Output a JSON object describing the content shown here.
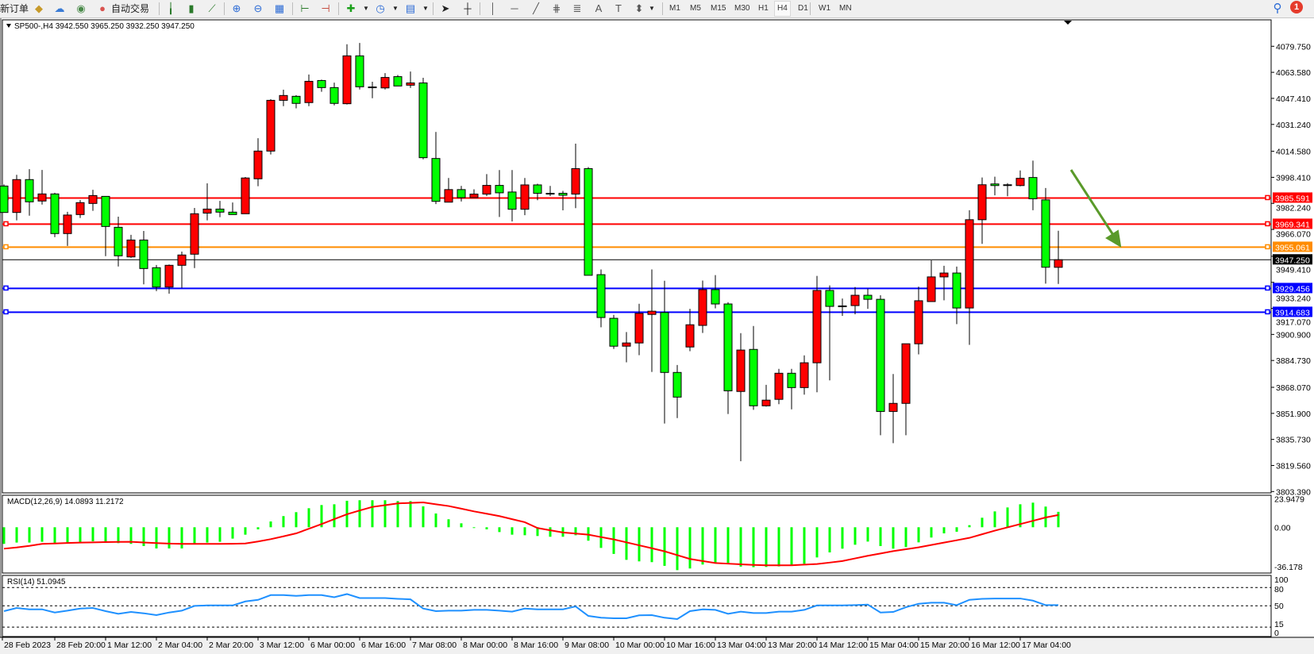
{
  "toolbar": {
    "new_order_label": "新订单",
    "auto_trading_label": "自动交易",
    "icons": [
      "open-folder-icon",
      "cloud-profile-icon",
      "signal-icon",
      "auto-trading-icon",
      "bar-chart-icon",
      "candlestick-icon",
      "line-chart-icon",
      "zoom-in-icon",
      "zoom-out-icon",
      "tile-windows-icon",
      "chart-shift-icon",
      "autoscroll-icon",
      "new-indicator-icon",
      "periods-clock-icon",
      "templates-icon",
      "cursor-icon",
      "crosshair-icon",
      "vertical-line-icon",
      "horizontal-line-icon",
      "trend-line-icon",
      "fibonacci-icon",
      "fibonacci-fan-icon",
      "text-icon",
      "text-label-icon",
      "arrows-icon"
    ],
    "timeframes": [
      "M1",
      "M5",
      "M15",
      "M30",
      "H1",
      "H4",
      "D1",
      "W1",
      "MN"
    ],
    "active_timeframe": "H4",
    "notification_count": "1"
  },
  "chart": {
    "title": "SP500-,H4  3942.550 3965.250 3932.250 3947.250",
    "symbol": "SP500-",
    "timeframe": "H4",
    "ohlc_current": {
      "open": 3942.55,
      "high": 3965.25,
      "low": 3932.25,
      "close": 3947.25
    },
    "colors": {
      "bull": "#ff0000",
      "bear": "#00ff00",
      "outline": "#000000",
      "arrow": "#5a9a2a"
    },
    "price_ticks": [
      "4079.750",
      "4063.580",
      "4047.410",
      "4031.240",
      "4014.580",
      "3998.410",
      "3982.240",
      "3966.070",
      "3949.410",
      "3933.240",
      "3917.070",
      "3900.900",
      "3884.730",
      "3868.070",
      "3851.900",
      "3835.730",
      "3819.560",
      "3803.390"
    ],
    "ylim": [
      3803.39,
      4079.75
    ],
    "time_labels": [
      "28 Feb 2023",
      "28 Feb 20:00",
      "1 Mar 12:00",
      "2 Mar 04:00",
      "2 Mar 20:00",
      "3 Mar 12:00",
      "6 Mar 00:00",
      "6 Mar 16:00",
      "7 Mar 08:00",
      "8 Mar 00:00",
      "8 Mar 16:00",
      "9 Mar 08:00",
      "10 Mar 00:00",
      "10 Mar 16:00",
      "13 Mar 04:00",
      "13 Mar 20:00",
      "14 Mar 12:00",
      "15 Mar 04:00",
      "15 Mar 20:00",
      "16 Mar 12:00",
      "17 Mar 04:00"
    ],
    "horizontal_lines": [
      {
        "price": 3985.591,
        "label": "3985.591",
        "color": "#ff0000"
      },
      {
        "price": 3969.341,
        "label": "3969.341",
        "color": "#ff0000"
      },
      {
        "price": 3955.061,
        "label": "3955.061",
        "color": "#ff8c00"
      },
      {
        "price": 3929.456,
        "label": "3929.456",
        "color": "#0000ff"
      },
      {
        "price": 3914.683,
        "label": "3914.683",
        "color": "#0000ff"
      }
    ],
    "bid_line": {
      "price": 3947.25,
      "label": "3947.250",
      "color": "#000000"
    },
    "annotation": "down-arrow"
  },
  "macd": {
    "label": "MACD(12,26,9) 14.0893 11.2172",
    "ticks": [
      "23.9479",
      "0.00",
      "-36.178"
    ],
    "histogram_color": "#00ff00",
    "signal_color": "#ff0000"
  },
  "rsi": {
    "label": "RSI(14) 51.0945",
    "ticks": [
      "100",
      "80",
      "50",
      "15",
      "0"
    ],
    "line_color": "#1e90ff"
  },
  "chart_data": {
    "type": "candlestick",
    "ohlc": [
      [
        3993.0,
        3994.0,
        3976.6,
        3976.6
      ],
      [
        3976.6,
        4000.0,
        3971.7,
        3997.0
      ],
      [
        3997.0,
        4003.5,
        3974.6,
        3983.2
      ],
      [
        3983.7,
        4003.0,
        3981.5,
        3988.1
      ],
      [
        3988.1,
        3988.8,
        3961.3,
        3963.5
      ],
      [
        3963.5,
        3977.0,
        3955.8,
        3975.0
      ],
      [
        3975.3,
        3984.3,
        3973.2,
        3982.7
      ],
      [
        3982.2,
        3990.7,
        3977.6,
        3987.1
      ],
      [
        3986.6,
        3986.6,
        3949.5,
        3967.9
      ],
      [
        3967.4,
        3974.0,
        3943.1,
        3949.7
      ],
      [
        3949.0,
        3962.7,
        3948.4,
        3959.5
      ],
      [
        3959.5,
        3965.1,
        3932.0,
        3941.8
      ],
      [
        3942.3,
        3944.0,
        3927.8,
        3930.3
      ],
      [
        3930.3,
        3944.3,
        3926.2,
        3943.8
      ],
      [
        3943.8,
        3952.3,
        3929.8,
        3950.2
      ],
      [
        3950.7,
        3979.4,
        3942.1,
        3975.8
      ],
      [
        3976.2,
        3994.7,
        3971.7,
        3978.7
      ],
      [
        3978.7,
        3983.8,
        3973.7,
        3976.8
      ],
      [
        3976.8,
        3982.8,
        3975.3,
        3975.3
      ],
      [
        3975.8,
        3998.6,
        3975.8,
        3998.0
      ],
      [
        3997.5,
        4022.7,
        3992.9,
        4014.7
      ],
      [
        4014.7,
        4046.9,
        4012.6,
        4046.2
      ],
      [
        4046.2,
        4052.8,
        4042.6,
        4049.2
      ],
      [
        4048.7,
        4049.4,
        4041.2,
        4044.3
      ],
      [
        4044.8,
        4062.2,
        4042.6,
        4058.0
      ],
      [
        4058.5,
        4059.0,
        4051.5,
        4054.1
      ],
      [
        4054.1,
        4057.2,
        4043.1,
        4044.3
      ],
      [
        4044.1,
        4081.0,
        4043.6,
        4073.8
      ],
      [
        4073.8,
        4081.8,
        4052.9,
        4054.6
      ],
      [
        4054.3,
        4057.7,
        4047.5,
        4054.5
      ],
      [
        4053.9,
        4063.1,
        4052.9,
        4060.4
      ],
      [
        4060.9,
        4061.9,
        4055.1,
        4055.1
      ],
      [
        4055.6,
        4064.1,
        4053.9,
        4057.0
      ],
      [
        4057.0,
        4060.2,
        4009.6,
        4010.6
      ],
      [
        4010.1,
        4026.6,
        3981.8,
        3983.5
      ],
      [
        3983.0,
        3998.0,
        3983.0,
        3990.8
      ],
      [
        3990.8,
        3993.1,
        3983.4,
        3985.8
      ],
      [
        3985.8,
        3991.0,
        3985.8,
        3988.0
      ],
      [
        3988.0,
        4000.4,
        3986.8,
        3993.4
      ],
      [
        3993.4,
        4002.9,
        3973.8,
        3988.8
      ],
      [
        3989.3,
        4002.9,
        3971.0,
        3978.6
      ],
      [
        3978.6,
        3998.0,
        3974.9,
        3993.7
      ],
      [
        3993.7,
        3994.4,
        3984.2,
        3988.5
      ],
      [
        3988.5,
        3993.1,
        3986.8,
        3988.5
      ],
      [
        3988.5,
        3990.0,
        3977.9,
        3987.3
      ],
      [
        3988.0,
        4019.3,
        3979.3,
        4003.8
      ],
      [
        4003.8,
        4004.8,
        3937.6,
        3937.6
      ],
      [
        3938.0,
        3941.2,
        3905.3,
        3911.4
      ],
      [
        3910.9,
        3913.0,
        3891.9,
        3893.6
      ],
      [
        3893.6,
        3902.4,
        3883.6,
        3895.6
      ],
      [
        3895.6,
        3919.9,
        3888.0,
        3914.0
      ],
      [
        3913.3,
        3941.2,
        3877.6,
        3915.3
      ],
      [
        3914.5,
        3934.2,
        3845.6,
        3877.3
      ],
      [
        3877.3,
        3881.9,
        3849.0,
        3862.0
      ],
      [
        3893.1,
        3916.8,
        3890.5,
        3906.9
      ],
      [
        3906.5,
        3934.3,
        3901.8,
        3928.7
      ],
      [
        3928.7,
        3937.7,
        3917.1,
        3919.8
      ],
      [
        3919.8,
        3920.9,
        3851.5,
        3865.9
      ],
      [
        3865.5,
        3901.7,
        3822.2,
        3891.2
      ],
      [
        3891.6,
        3906.1,
        3854.1,
        3856.6
      ],
      [
        3856.6,
        3869.6,
        3856.1,
        3860.1
      ],
      [
        3860.6,
        3879.5,
        3857.6,
        3876.8
      ],
      [
        3876.8,
        3879.5,
        3854.4,
        3867.9
      ],
      [
        3867.9,
        3887.9,
        3863.5,
        3883.3
      ],
      [
        3883.3,
        3937.2,
        3865.0,
        3928.2
      ],
      [
        3928.2,
        3931.3,
        3872.4,
        3918.3
      ],
      [
        3918.6,
        3923.2,
        3912.4,
        3918.6
      ],
      [
        3918.8,
        3930.3,
        3913.4,
        3925.2
      ],
      [
        3925.2,
        3929.3,
        3916.8,
        3922.7
      ],
      [
        3922.7,
        3925.2,
        3838.3,
        3853.1
      ],
      [
        3853.1,
        3876.3,
        3833.4,
        3858.1
      ],
      [
        3858.1,
        3895.1,
        3838.3,
        3895.1
      ],
      [
        3895.1,
        3930.6,
        3888.5,
        3921.8
      ],
      [
        3921.3,
        3946.9,
        3921.3,
        3936.6
      ],
      [
        3936.6,
        3943.5,
        3922.1,
        3939.0
      ],
      [
        3939.0,
        3943.0,
        3907.3,
        3917.3
      ],
      [
        3917.3,
        3978.0,
        3894.4,
        3972.1
      ],
      [
        3972.1,
        3998.3,
        3957.1,
        3993.8
      ],
      [
        3994.3,
        3998.8,
        3987.2,
        3993.3
      ],
      [
        3993.8,
        3994.8,
        3986.7,
        3993.8
      ],
      [
        3993.3,
        4002.7,
        3992.8,
        3997.8
      ],
      [
        3998.3,
        4008.8,
        3978.0,
        3985.1
      ],
      [
        3984.4,
        3991.8,
        3932.4,
        3942.6
      ],
      [
        3942.55,
        3965.25,
        3932.25,
        3947.25
      ]
    ],
    "macd_histogram": [
      -15.2,
      -14.0,
      -14.0,
      -13.3,
      -14.5,
      -14.0,
      -14.0,
      -12.8,
      -14.0,
      -14.5,
      -15.2,
      -17.2,
      -19.4,
      -19.4,
      -19.4,
      -15.2,
      -14.0,
      -13.3,
      -10.4,
      -6.8,
      -1.9,
      5.3,
      10.2,
      13.8,
      17.4,
      20.3,
      21.0,
      24.2,
      24.7,
      24.7,
      24.7,
      23.9,
      23.9,
      19.1,
      12.6,
      7.3,
      3.6,
      -0.7,
      -1.9,
      -4.4,
      -6.8,
      -7.3,
      -8.0,
      -8.7,
      -8.7,
      -7.3,
      -12.3,
      -18.9,
      -24.4,
      -29.8,
      -31.2,
      -31.9,
      -35.3,
      -39.2,
      -37.7,
      -34.1,
      -32.2,
      -32.7,
      -36.0,
      -36.5,
      -36.3,
      -35.8,
      -34.6,
      -33.4,
      -27.6,
      -23.0,
      -19.6,
      -16.0,
      -13.1,
      -17.2,
      -19.6,
      -18.1,
      -13.8,
      -9.4,
      -5.6,
      -4.1,
      1.9,
      8.7,
      14.5,
      18.1,
      21.0,
      22.5,
      18.9,
      14.09
    ],
    "macd_signal": [
      -19.6,
      -18.5,
      -17.0,
      -15.2,
      -14.8,
      -14.4,
      -14.0,
      -13.8,
      -13.6,
      -13.4,
      -13.3,
      -13.9,
      -14.5,
      -14.9,
      -15.2,
      -15.2,
      -15.2,
      -15.2,
      -15.1,
      -14.8,
      -13.0,
      -10.9,
      -8.3,
      -5.6,
      -1.4,
      2.9,
      7.4,
      11.9,
      15.3,
      18.6,
      20.2,
      21.8,
      22.3,
      22.7,
      21.0,
      19.4,
      17.0,
      14.5,
      12.4,
      10.2,
      7.4,
      4.6,
      -0.7,
      -2.8,
      -4.8,
      -5.8,
      -6.8,
      -9.0,
      -11.1,
      -13.8,
      -16.5,
      -19.2,
      -22.0,
      -25.5,
      -29.0,
      -30.9,
      -32.7,
      -33.3,
      -33.9,
      -34.4,
      -34.8,
      -34.8,
      -34.8,
      -34.2,
      -33.6,
      -32.3,
      -30.9,
      -28.5,
      -26.1,
      -24.0,
      -21.8,
      -20.1,
      -18.4,
      -16.2,
      -14.0,
      -11.9,
      -9.7,
      -6.4,
      -3.1,
      -0.1,
      2.9,
      5.9,
      8.9,
      11.22
    ],
    "rsi": [
      41.2,
      46.4,
      44.2,
      44.2,
      39.0,
      42.0,
      45.5,
      46.4,
      41.2,
      36.9,
      39.9,
      37.7,
      34.7,
      39.0,
      42.0,
      49.8,
      50.6,
      50.6,
      50.6,
      57.2,
      59.8,
      67.6,
      67.6,
      66.3,
      67.6,
      67.6,
      64.1,
      69.3,
      62.8,
      62.8,
      62.8,
      61.5,
      60.6,
      45.5,
      41.2,
      42.0,
      42.0,
      43.3,
      43.3,
      42.0,
      40.4,
      45.5,
      44.2,
      44.2,
      44.2,
      49.0,
      33.4,
      30.4,
      29.5,
      29.5,
      34.3,
      34.7,
      30.4,
      28.2,
      41.2,
      44.2,
      43.3,
      36.9,
      40.4,
      38.2,
      38.2,
      40.4,
      40.4,
      43.3,
      50.6,
      50.6,
      50.6,
      51.1,
      51.9,
      39.0,
      39.9,
      47.7,
      53.3,
      55.0,
      55.0,
      51.1,
      59.8,
      61.5,
      62.0,
      62.0,
      62.0,
      58.5,
      51.1,
      51.09
    ],
    "rsi_levels": [
      80,
      50,
      15
    ],
    "grid": false
  }
}
